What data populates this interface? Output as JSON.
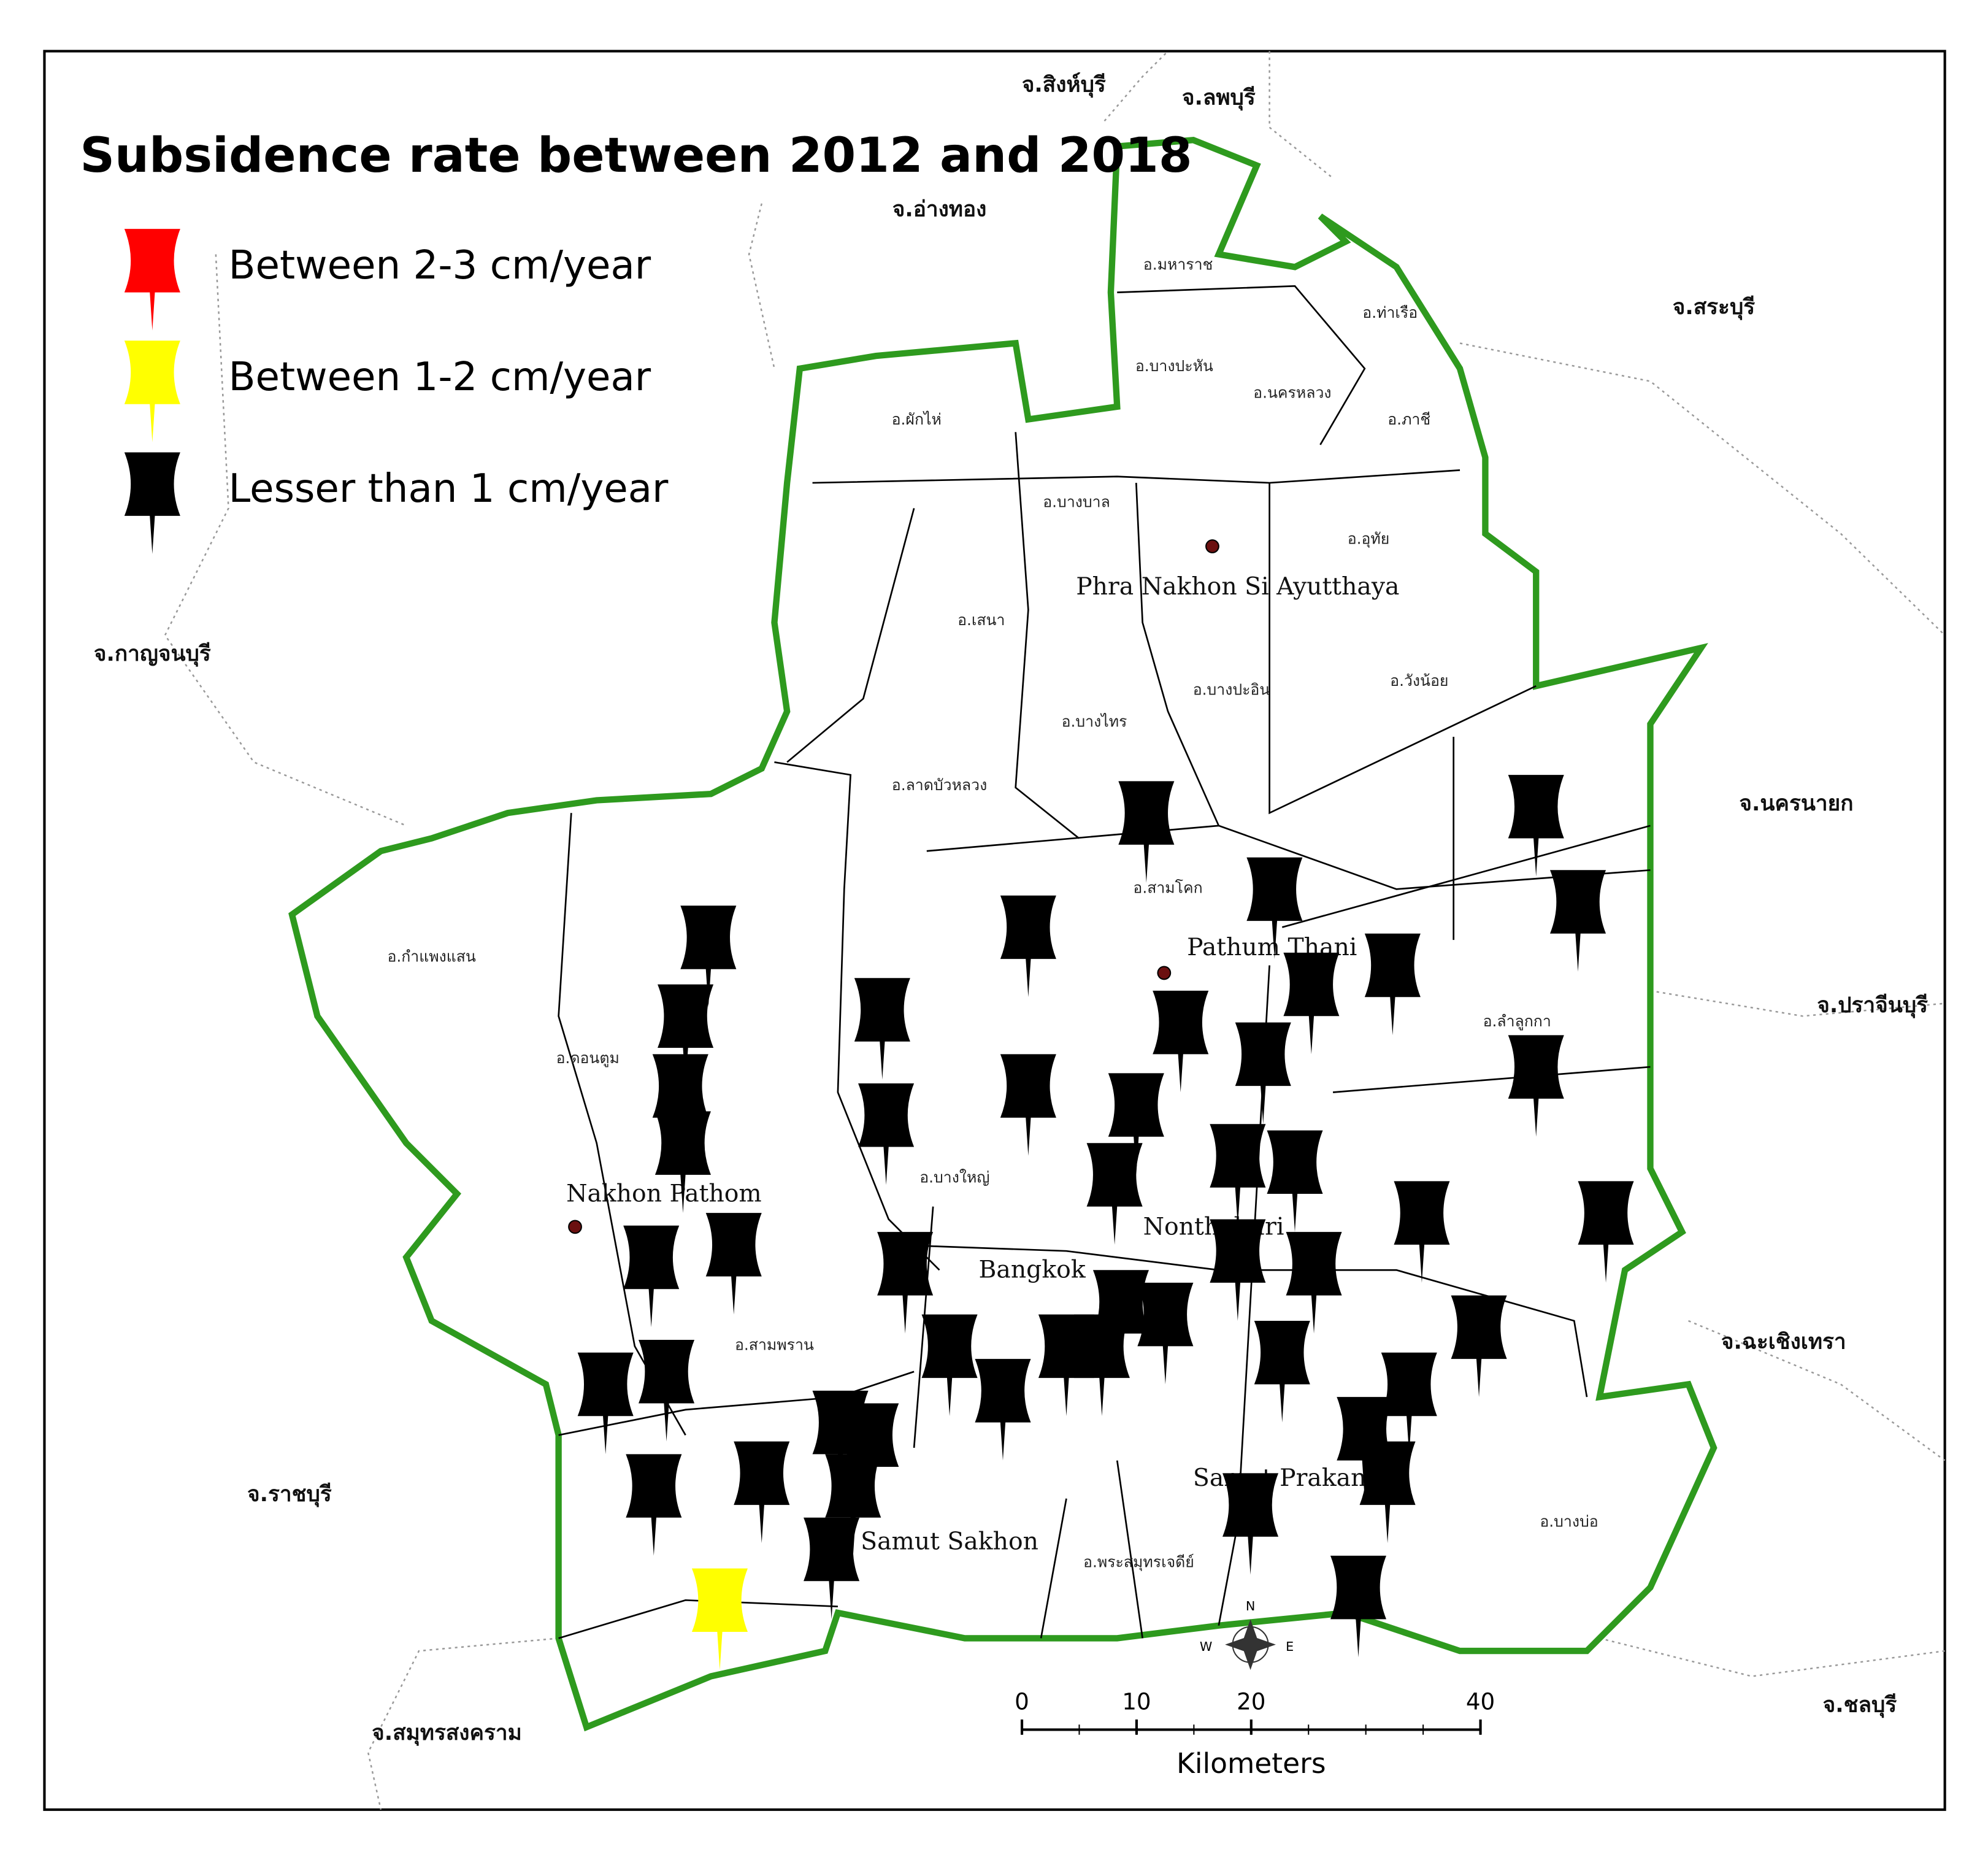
{
  "title": "Subsidence rate between 2012 and 2018",
  "legend": [
    {
      "label": "Between 2-3 cm/year",
      "color": "#ff0000"
    },
    {
      "label": "Between 1-2 cm/year",
      "color": "#ffff00"
    },
    {
      "label": "Lesser than 1 cm/year",
      "color": "#000000"
    }
  ],
  "provinces": [
    "จ.สิงห์บุรี",
    "จ.ลพบุรี",
    "จ.อ่างทอง",
    "จ.สระบุรี",
    "จ.กาญจนบุรี",
    "จ.นครนายก",
    "จ.ปราจีนบุรี",
    "จ.ฉะเชิงเทรา",
    "จ.ราชบุรี",
    "จ.สมุทรสงคราม",
    "จ.ชลบุรี"
  ],
  "cities": [
    "Phra Nakhon Si Ayutthaya",
    "Pathum Thani",
    "Nakhon Pathom",
    "Nonthaburi",
    "Bangkok",
    "Samut Prakan",
    "Samut Sakhon"
  ],
  "districts": [
    "อ.มหาราช",
    "อ.ท่าเรือ",
    "อ.บางปะหัน",
    "อ.นครหลวง",
    "อ.ผักไห่",
    "อ.ภาชี",
    "อ.บางบาล",
    "อ.อุทัย",
    "อ.เสนา",
    "อ.บางปะอิน",
    "อ.วังน้อย",
    "อ.บางไทร",
    "อ.ลาดบัวหลวง",
    "อ.สามโคก",
    "อ.กำแพงแสน",
    "อ.ดอนตูม",
    "อ.สามพราน",
    "อ.บางใหญ่",
    "อ.ลำลูกกา",
    "อ.พระสมุทรเจดีย์",
    "อ.บางบ่อ"
  ],
  "scale_bar": {
    "ticks": [
      0,
      10,
      20,
      40
    ],
    "unit": "Kilometers"
  },
  "compass": [
    "N",
    "W",
    "E"
  ]
}
